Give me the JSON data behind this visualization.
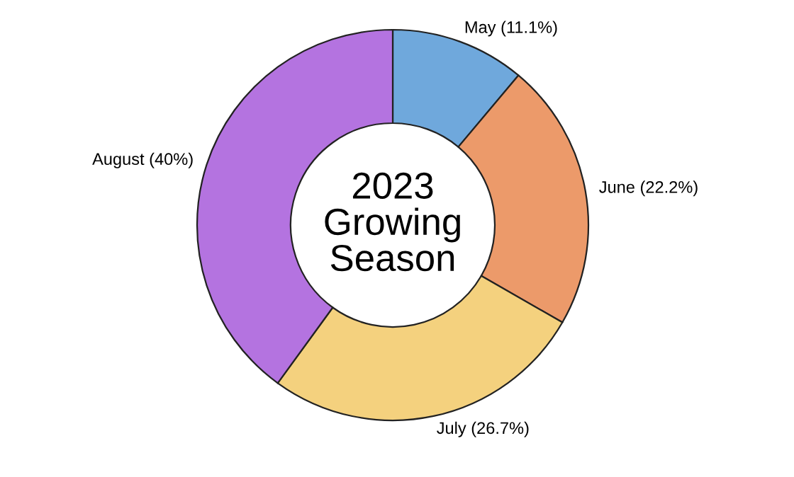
{
  "chart_data": {
    "type": "donut",
    "title": "2023\nGrowing\nSeason",
    "categories": [
      "May",
      "June",
      "July",
      "August"
    ],
    "values": [
      11.1,
      22.2,
      26.7,
      40
    ],
    "value_labels": [
      "(11.1%)",
      "(22.2%)",
      "(26.7%)",
      "(40%)"
    ],
    "colors": [
      "#6fa8dc",
      "#ec9a6a",
      "#f4d17e",
      "#b473e0"
    ],
    "legend": false
  }
}
